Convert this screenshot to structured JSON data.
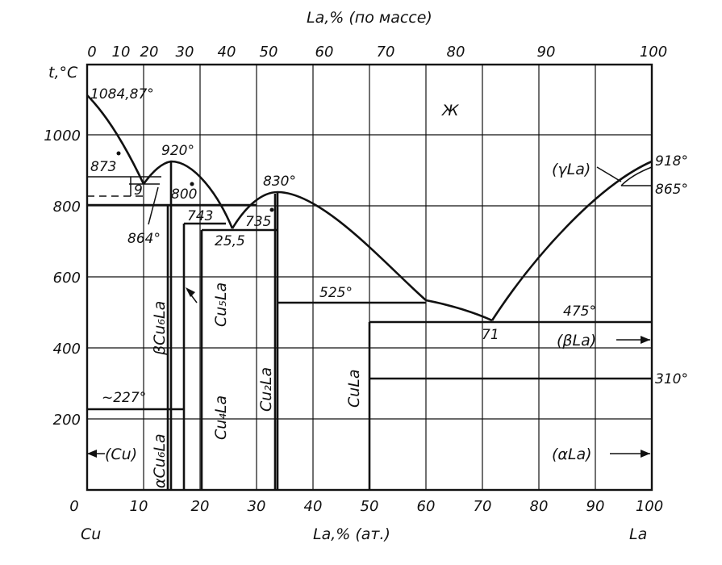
{
  "diagram": {
    "top_axis_title": "La,% (по массе)",
    "top_ticks": [
      "0",
      "10",
      "20",
      "30",
      "40",
      "50",
      "60",
      "70",
      "80",
      "90",
      "100"
    ],
    "y_axis_title": "t,°C",
    "y_ticks": [
      "1000",
      "800",
      "600",
      "400",
      "200"
    ],
    "bottom_ticks": [
      "0",
      "10",
      "20",
      "30",
      "40",
      "50",
      "60",
      "70",
      "80",
      "90",
      "100"
    ],
    "bottom_axis_title": "La,% (ат.)",
    "left_element": "Cu",
    "right_element": "La",
    "liquid_label": "Ж",
    "temperatures": {
      "cu_melt": "1084,87°",
      "t873": "873",
      "t920": "920°",
      "t800": "800",
      "t864": "864°",
      "t743": "743",
      "t735": "735",
      "t830": "830°",
      "t525": "525°",
      "t475": "475°",
      "t918": "918°",
      "t865": "865°",
      "t310": "310°",
      "t227": "~227°"
    },
    "compositions": {
      "c9": "9",
      "c25_5": "25,5",
      "c71": "71"
    },
    "phases": {
      "beta_cu6la": "βCu₆La",
      "alpha_cu6la": "αCu₆La",
      "cu5la": "Cu₅La",
      "cu4la": "Cu₄La",
      "cu2la": "Cu₂La",
      "cula": "CuLa",
      "cu_solid": "(Cu)",
      "gamma_la": "(γLa)",
      "beta_la": "(βLa)",
      "alpha_la": "(αLa)"
    }
  }
}
